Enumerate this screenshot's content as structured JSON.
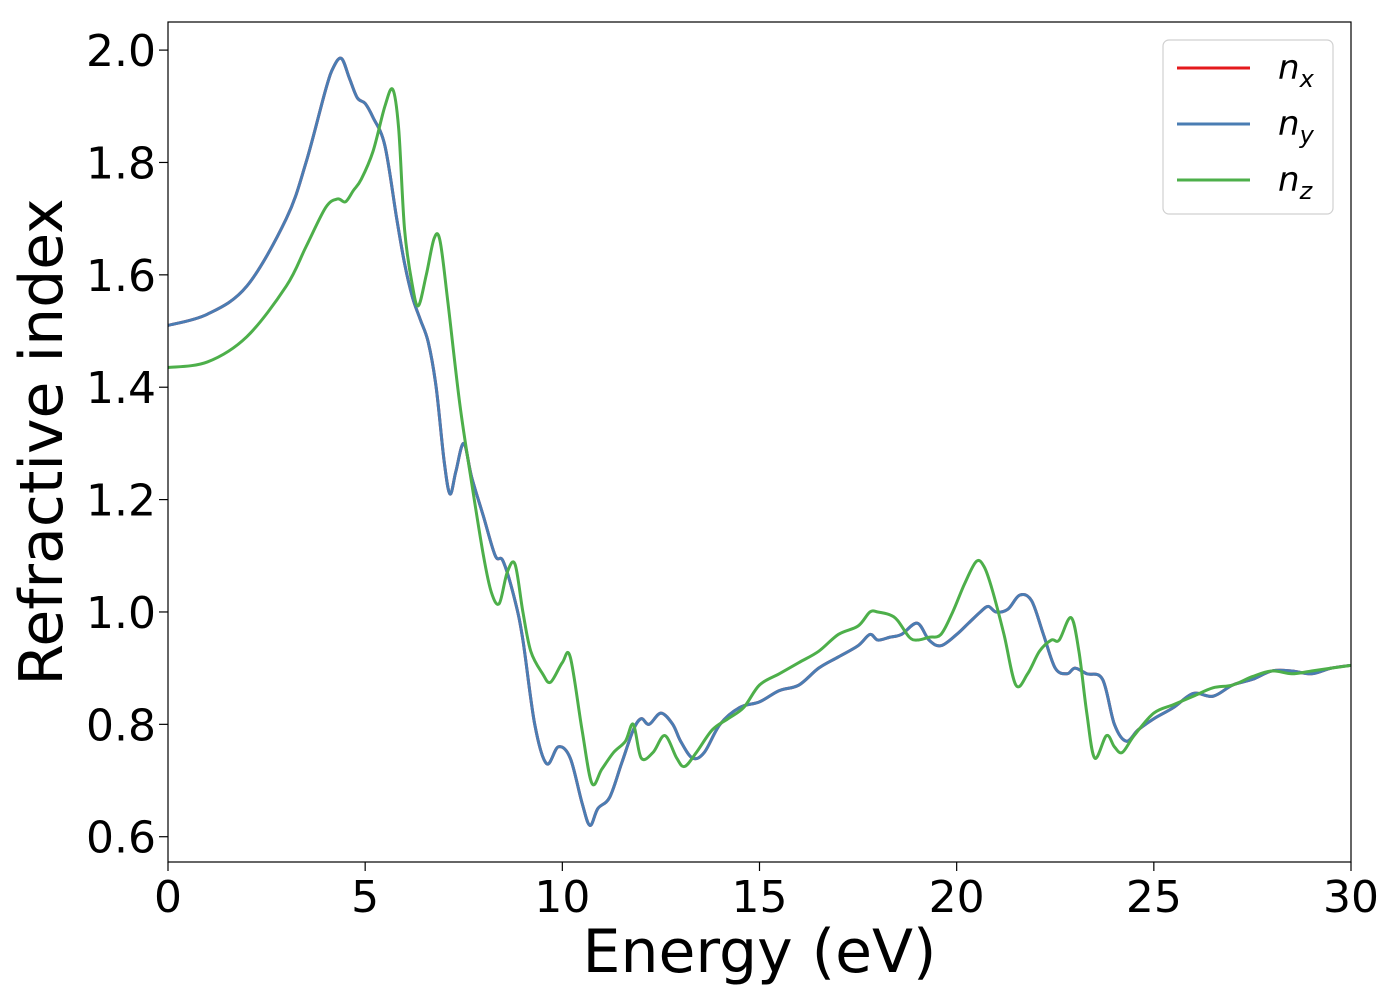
{
  "chart_data": {
    "type": "line",
    "title": "",
    "xlabel": "Energy (eV)",
    "ylabel": "Refractive index",
    "xlim": [
      0,
      30
    ],
    "ylim": [
      0.555,
      2.05
    ],
    "xticks": [
      0,
      5,
      10,
      15,
      20,
      25,
      30
    ],
    "yticks": [
      0.6,
      0.8,
      1.0,
      1.2,
      1.4,
      1.6,
      1.8,
      2.0
    ],
    "xtick_labels": [
      "0",
      "5",
      "10",
      "15",
      "20",
      "25",
      "30"
    ],
    "ytick_labels": [
      "0.6",
      "0.8",
      "1.0",
      "1.2",
      "1.4",
      "1.6",
      "1.8",
      "2.0"
    ],
    "grid": false,
    "legend_position": "top-right",
    "series": [
      {
        "name": "n_x",
        "label_base": "n",
        "label_sub": "x",
        "color": "#e41a1c",
        "x": [
          0,
          1,
          2,
          3,
          3.5,
          4,
          4.2,
          4.4,
          4.6,
          4.8,
          5,
          5.2,
          5.5,
          5.8,
          6,
          6.2,
          6.4,
          6.6,
          6.8,
          7,
          7.15,
          7.3,
          7.5,
          7.7,
          8,
          8.3,
          8.5,
          8.8,
          9,
          9.3,
          9.6,
          9.9,
          10.2,
          10.5,
          10.7,
          10.9,
          11.2,
          11.5,
          11.8,
          12,
          12.2,
          12.5,
          12.8,
          13,
          13.3,
          13.6,
          14,
          14.5,
          15,
          15.5,
          16,
          16.5,
          17,
          17.5,
          17.8,
          18,
          18.3,
          18.6,
          19,
          19.3,
          19.6,
          20,
          20.3,
          20.6,
          20.8,
          21,
          21.3,
          21.6,
          21.9,
          22.2,
          22.5,
          22.8,
          23,
          23.3,
          23.7,
          24,
          24.3,
          24.6,
          25,
          25.5,
          26,
          26.5,
          27,
          27.5,
          28,
          28.5,
          29,
          29.5,
          30
        ],
        "y": [
          1.51,
          1.53,
          1.58,
          1.7,
          1.8,
          1.93,
          1.97,
          1.985,
          1.95,
          1.915,
          1.905,
          1.88,
          1.83,
          1.7,
          1.62,
          1.56,
          1.52,
          1.48,
          1.4,
          1.27,
          1.21,
          1.25,
          1.3,
          1.24,
          1.17,
          1.1,
          1.09,
          1.02,
          0.95,
          0.8,
          0.73,
          0.76,
          0.74,
          0.66,
          0.62,
          0.65,
          0.67,
          0.73,
          0.79,
          0.81,
          0.8,
          0.82,
          0.8,
          0.77,
          0.74,
          0.75,
          0.8,
          0.83,
          0.84,
          0.86,
          0.87,
          0.9,
          0.92,
          0.94,
          0.96,
          0.95,
          0.955,
          0.96,
          0.98,
          0.95,
          0.94,
          0.96,
          0.98,
          1.0,
          1.01,
          1.0,
          1.005,
          1.03,
          1.02,
          0.96,
          0.9,
          0.89,
          0.9,
          0.89,
          0.88,
          0.8,
          0.77,
          0.79,
          0.81,
          0.83,
          0.855,
          0.85,
          0.87,
          0.88,
          0.895,
          0.895,
          0.89,
          0.9,
          0.905
        ]
      },
      {
        "name": "n_y",
        "label_base": "n",
        "label_sub": "y",
        "color": "#4a7db3",
        "x": [
          0,
          1,
          2,
          3,
          3.5,
          4,
          4.2,
          4.4,
          4.6,
          4.8,
          5,
          5.2,
          5.5,
          5.8,
          6,
          6.2,
          6.4,
          6.6,
          6.8,
          7,
          7.15,
          7.3,
          7.5,
          7.7,
          8,
          8.3,
          8.5,
          8.8,
          9,
          9.3,
          9.6,
          9.9,
          10.2,
          10.5,
          10.7,
          10.9,
          11.2,
          11.5,
          11.8,
          12,
          12.2,
          12.5,
          12.8,
          13,
          13.3,
          13.6,
          14,
          14.5,
          15,
          15.5,
          16,
          16.5,
          17,
          17.5,
          17.8,
          18,
          18.3,
          18.6,
          19,
          19.3,
          19.6,
          20,
          20.3,
          20.6,
          20.8,
          21,
          21.3,
          21.6,
          21.9,
          22.2,
          22.5,
          22.8,
          23,
          23.3,
          23.7,
          24,
          24.3,
          24.6,
          25,
          25.5,
          26,
          26.5,
          27,
          27.5,
          28,
          28.5,
          29,
          29.5,
          30
        ],
        "y": [
          1.51,
          1.53,
          1.58,
          1.7,
          1.8,
          1.93,
          1.97,
          1.985,
          1.95,
          1.915,
          1.905,
          1.88,
          1.83,
          1.7,
          1.62,
          1.56,
          1.52,
          1.48,
          1.4,
          1.27,
          1.21,
          1.25,
          1.3,
          1.24,
          1.17,
          1.1,
          1.09,
          1.02,
          0.95,
          0.8,
          0.73,
          0.76,
          0.74,
          0.66,
          0.62,
          0.65,
          0.67,
          0.73,
          0.79,
          0.81,
          0.8,
          0.82,
          0.8,
          0.77,
          0.74,
          0.75,
          0.8,
          0.83,
          0.84,
          0.86,
          0.87,
          0.9,
          0.92,
          0.94,
          0.96,
          0.95,
          0.955,
          0.96,
          0.98,
          0.95,
          0.94,
          0.96,
          0.98,
          1.0,
          1.01,
          1.0,
          1.005,
          1.03,
          1.02,
          0.96,
          0.9,
          0.89,
          0.9,
          0.89,
          0.88,
          0.8,
          0.77,
          0.79,
          0.81,
          0.83,
          0.855,
          0.85,
          0.87,
          0.88,
          0.895,
          0.895,
          0.89,
          0.9,
          0.905
        ]
      },
      {
        "name": "n_z",
        "label_base": "n",
        "label_sub": "z",
        "color": "#4daf4a",
        "x": [
          0,
          1,
          2,
          3,
          3.5,
          4,
          4.3,
          4.5,
          4.7,
          4.9,
          5.2,
          5.5,
          5.7,
          5.85,
          6,
          6.2,
          6.35,
          6.55,
          6.75,
          6.9,
          7.1,
          7.4,
          7.7,
          8,
          8.2,
          8.4,
          8.6,
          8.8,
          9,
          9.2,
          9.5,
          9.7,
          10,
          10.2,
          10.5,
          10.75,
          11,
          11.3,
          11.6,
          11.8,
          12,
          12.3,
          12.6,
          12.9,
          13.1,
          13.4,
          13.8,
          14.2,
          14.6,
          15,
          15.5,
          16,
          16.5,
          17,
          17.5,
          17.8,
          18,
          18.3,
          18.5,
          18.8,
          19,
          19.3,
          19.6,
          19.9,
          20.2,
          20.5,
          20.7,
          20.9,
          21.2,
          21.5,
          21.8,
          22.1,
          22.4,
          22.6,
          22.9,
          23.1,
          23.3,
          23.5,
          23.8,
          24,
          24.2,
          24.5,
          25,
          25.5,
          26,
          26.5,
          27,
          27.5,
          28,
          28.5,
          29,
          29.5,
          30
        ],
        "y": [
          1.435,
          1.445,
          1.49,
          1.58,
          1.65,
          1.72,
          1.735,
          1.73,
          1.75,
          1.77,
          1.82,
          1.9,
          1.93,
          1.86,
          1.68,
          1.58,
          1.545,
          1.6,
          1.665,
          1.66,
          1.55,
          1.37,
          1.23,
          1.1,
          1.035,
          1.015,
          1.07,
          1.085,
          1.0,
          0.93,
          0.89,
          0.875,
          0.91,
          0.92,
          0.79,
          0.695,
          0.72,
          0.75,
          0.77,
          0.8,
          0.74,
          0.75,
          0.78,
          0.74,
          0.725,
          0.75,
          0.79,
          0.81,
          0.83,
          0.87,
          0.89,
          0.91,
          0.93,
          0.96,
          0.975,
          1.0,
          1.0,
          0.995,
          0.985,
          0.955,
          0.95,
          0.955,
          0.96,
          1.0,
          1.05,
          1.09,
          1.08,
          1.04,
          0.96,
          0.87,
          0.89,
          0.93,
          0.95,
          0.95,
          0.99,
          0.93,
          0.82,
          0.74,
          0.78,
          0.76,
          0.75,
          0.78,
          0.82,
          0.835,
          0.85,
          0.865,
          0.87,
          0.885,
          0.895,
          0.89,
          0.895,
          0.9,
          0.905
        ]
      }
    ]
  }
}
